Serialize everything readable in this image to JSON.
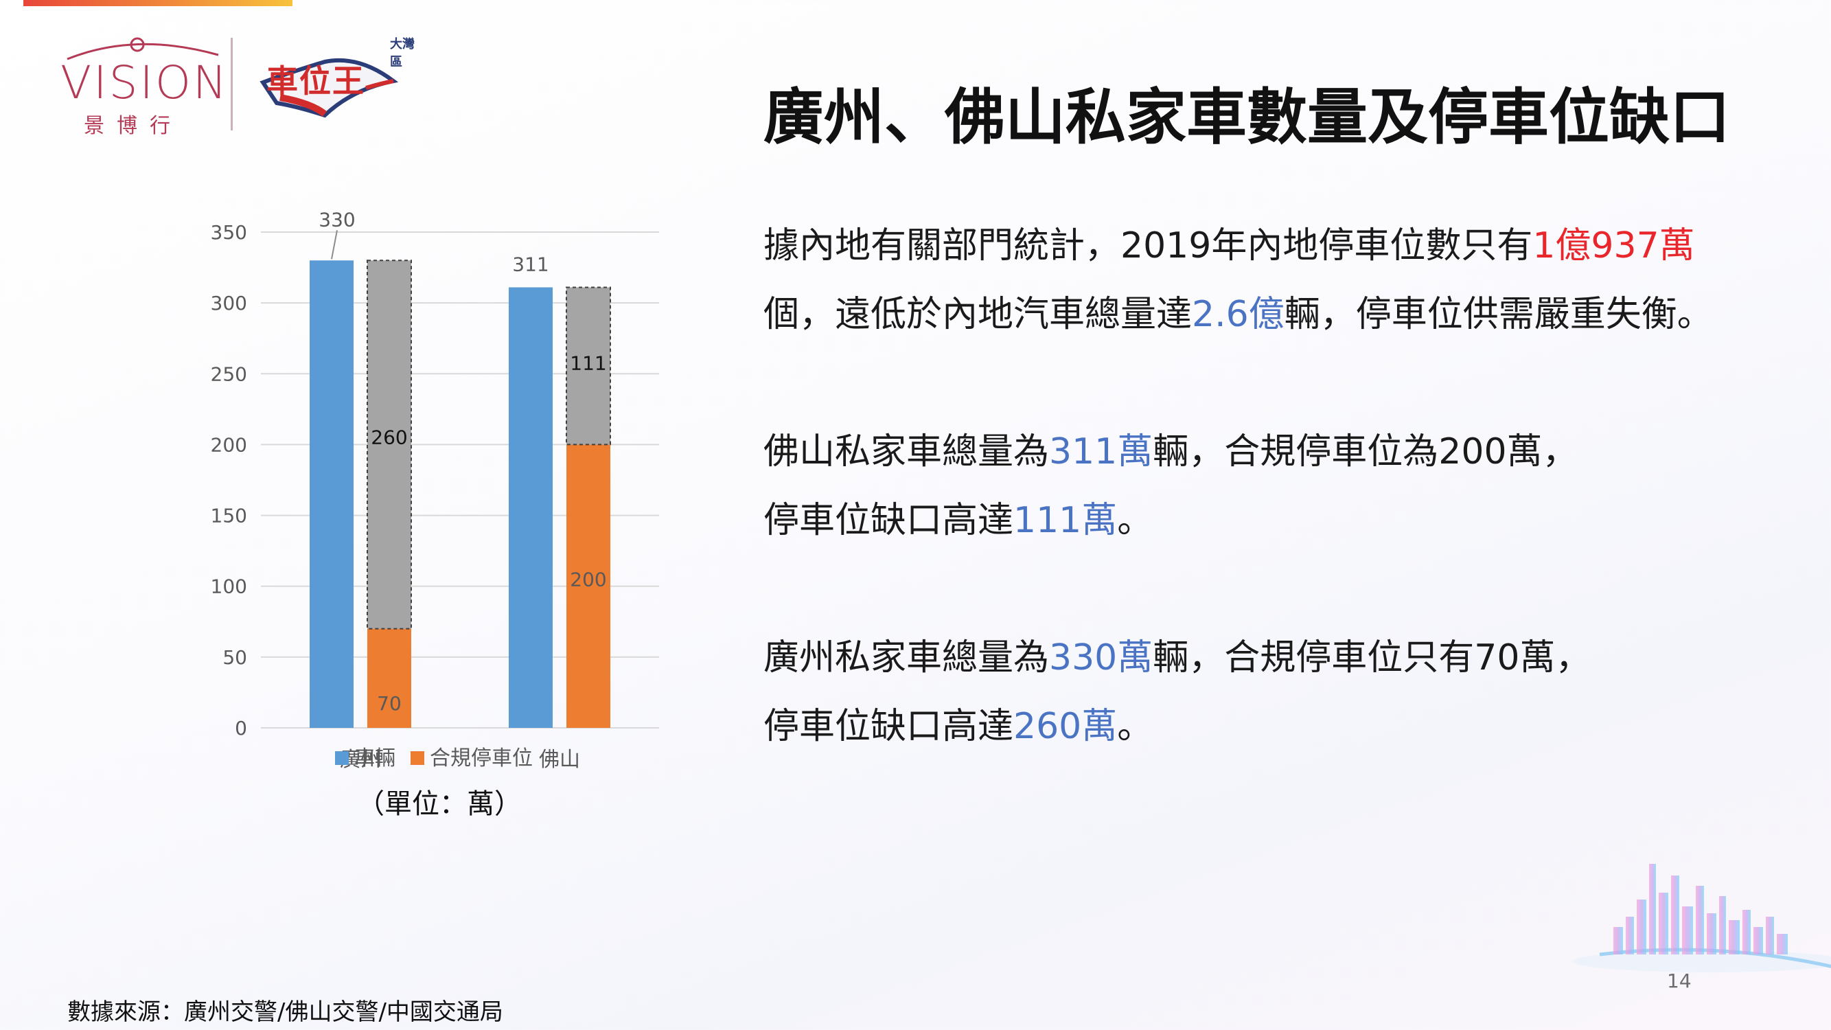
{
  "logo": {
    "brand_en": "VISION",
    "brand_cn": "景博行",
    "partner_region": "大灣區",
    "partner_name": "車位王"
  },
  "title": "廣州、佛山私家車數量及停車位缺口",
  "paragraphs": {
    "p1": {
      "line1": {
        "pre": "據內地有關部門統計，2019年內地停車位數只有",
        "hl": "1億937萬",
        "post": ""
      },
      "line2": {
        "pre": "個，遠低於內地汽車總量達",
        "hl": "2.6億",
        "post": "輛，停車位供需嚴重失衡。"
      }
    },
    "p2": {
      "line1": {
        "pre": "佛山私家車總量為",
        "hl": "311萬",
        "post": "輛，合規停車位為200萬，"
      },
      "line2": {
        "pre": "停車位缺口高達",
        "hl": "111萬",
        "post": "。"
      }
    },
    "p3": {
      "line1": {
        "pre": "廣州私家車總量為",
        "hl": "330萬",
        "post": "輛，合規停車位只有70萬，"
      },
      "line2": {
        "pre": "停車位缺口高達",
        "hl": "260萬",
        "post": "。"
      }
    }
  },
  "colors": {
    "red": "#e8262c",
    "blue": "#4a74c3",
    "vehicles": "#5b9bd5",
    "parking": "#ed7d31",
    "gap": "#a5a5a5"
  },
  "chart_data": {
    "type": "bar",
    "categories": [
      "廣州",
      "佛山"
    ],
    "series": [
      {
        "name": "車輛",
        "values": [
          330,
          311
        ]
      },
      {
        "name": "合規停車位",
        "values": [
          70,
          200
        ]
      }
    ],
    "gap_values": [
      260,
      111
    ],
    "ylim": [
      0,
      350
    ],
    "yticks": [
      "0",
      "50",
      "100",
      "150",
      "200",
      "250",
      "300",
      "350"
    ],
    "unit_label": "（單位：萬）",
    "legend_position": "bottom",
    "grid": true
  },
  "source": "數據來源：廣州交警/佛山交警/中國交通局",
  "page_number": "14"
}
